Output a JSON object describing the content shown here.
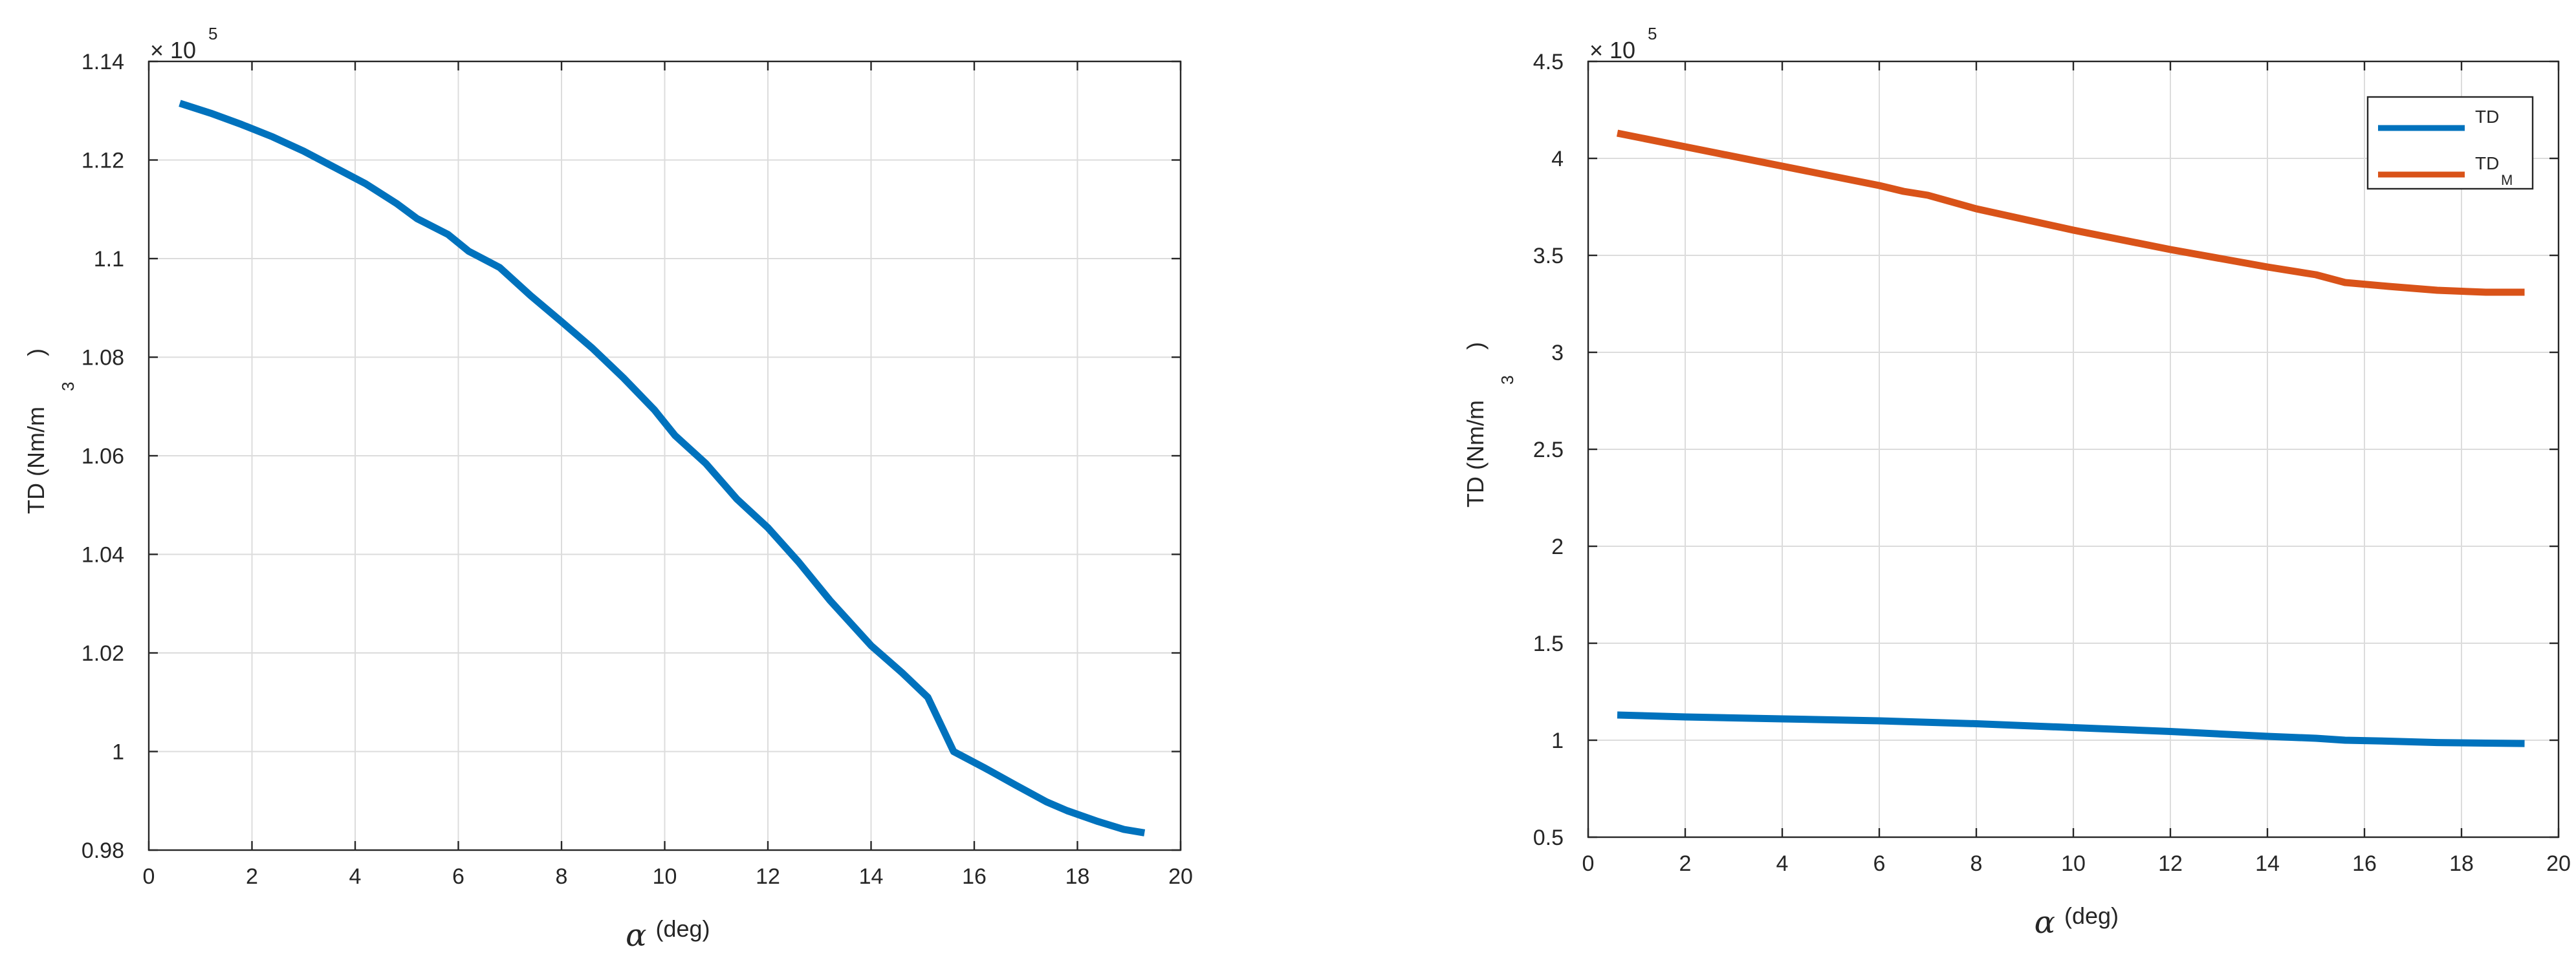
{
  "chart_data": [
    {
      "type": "line",
      "xlabel": {
        "symbol": "α",
        "unit": "(deg)"
      },
      "ylabel": {
        "text": "TD (Nm/m",
        "sup": "3",
        "close": ")"
      },
      "exponent": {
        "prefix": "× 10",
        "power": "5"
      },
      "xlim": [
        0,
        20
      ],
      "ylim": [
        0.98,
        1.14
      ],
      "xticks": [
        0,
        2,
        4,
        6,
        8,
        10,
        12,
        14,
        16,
        18,
        20
      ],
      "yticks": [
        0.98,
        1,
        1.02,
        1.04,
        1.06,
        1.08,
        1.1,
        1.12,
        1.14
      ],
      "ytick_labels": [
        "0.98",
        "1",
        "1.02",
        "1.04",
        "1.06",
        "1.08",
        "1.1",
        "1.12",
        "1.14"
      ],
      "grid": true,
      "series": [
        {
          "color": "#0072BD",
          "x": [
            0.6,
            1.2,
            1.8,
            2.4,
            3.0,
            3.6,
            4.2,
            4.8,
            5.2,
            5.8,
            6.2,
            6.8,
            7.4,
            8.0,
            8.6,
            9.2,
            9.8,
            10.2,
            10.8,
            11.4,
            12.0,
            12.6,
            13.2,
            14.0,
            14.6,
            15.1,
            15.6,
            16.2,
            16.8,
            17.4,
            17.8,
            18.4,
            18.9,
            19.3
          ],
          "y": [
            1.1315,
            1.1295,
            1.1272,
            1.1247,
            1.1218,
            1.1185,
            1.1152,
            1.1112,
            1.1081,
            1.1049,
            1.1015,
            1.0982,
            1.0925,
            1.0872,
            1.0818,
            1.0758,
            1.0693,
            1.0641,
            1.0584,
            1.0512,
            1.0454,
            1.0384,
            1.0307,
            1.0215,
            1.016,
            1.011,
            1.0,
            0.9967,
            0.9932,
            0.9898,
            0.988,
            0.9858,
            0.9842,
            0.9835
          ]
        }
      ]
    },
    {
      "type": "line",
      "xlabel": {
        "symbol": "α",
        "unit": "(deg)"
      },
      "ylabel": {
        "text": "TD (Nm/m",
        "sup": "3",
        "close": ")"
      },
      "exponent": {
        "prefix": "× 10",
        "power": "5"
      },
      "xlim": [
        0,
        20
      ],
      "ylim": [
        0.5,
        4.5
      ],
      "xticks": [
        0,
        2,
        4,
        6,
        8,
        10,
        12,
        14,
        16,
        18,
        20
      ],
      "yticks": [
        0.5,
        1,
        1.5,
        2,
        2.5,
        3,
        3.5,
        4,
        4.5
      ],
      "ytick_labels": [
        "0.5",
        "1",
        "1.5",
        "2",
        "2.5",
        "3",
        "3.5",
        "4",
        "4.5"
      ],
      "grid": true,
      "legend": "top-right",
      "series": [
        {
          "name": "TD",
          "name_sub": "",
          "color": "#0072BD",
          "x": [
            0.6,
            2.0,
            4.0,
            6.0,
            8.0,
            10.0,
            12.0,
            14.0,
            15.0,
            15.6,
            16.5,
            17.5,
            18.5,
            19.3
          ],
          "y": [
            1.13,
            1.12,
            1.11,
            1.1,
            1.085,
            1.065,
            1.045,
            1.02,
            1.01,
            1.0,
            0.995,
            0.988,
            0.985,
            0.983
          ]
        },
        {
          "name": "TD",
          "name_sub": "M",
          "color": "#D95319",
          "x": [
            0.6,
            2.0,
            4.0,
            6.0,
            6.5,
            7.0,
            8.0,
            10.0,
            12.0,
            14.0,
            15.0,
            15.6,
            16.5,
            17.5,
            18.5,
            19.3
          ],
          "y": [
            4.13,
            4.06,
            3.96,
            3.86,
            3.83,
            3.81,
            3.74,
            3.63,
            3.53,
            3.44,
            3.4,
            3.36,
            3.34,
            3.32,
            3.31,
            3.31
          ]
        }
      ]
    }
  ]
}
